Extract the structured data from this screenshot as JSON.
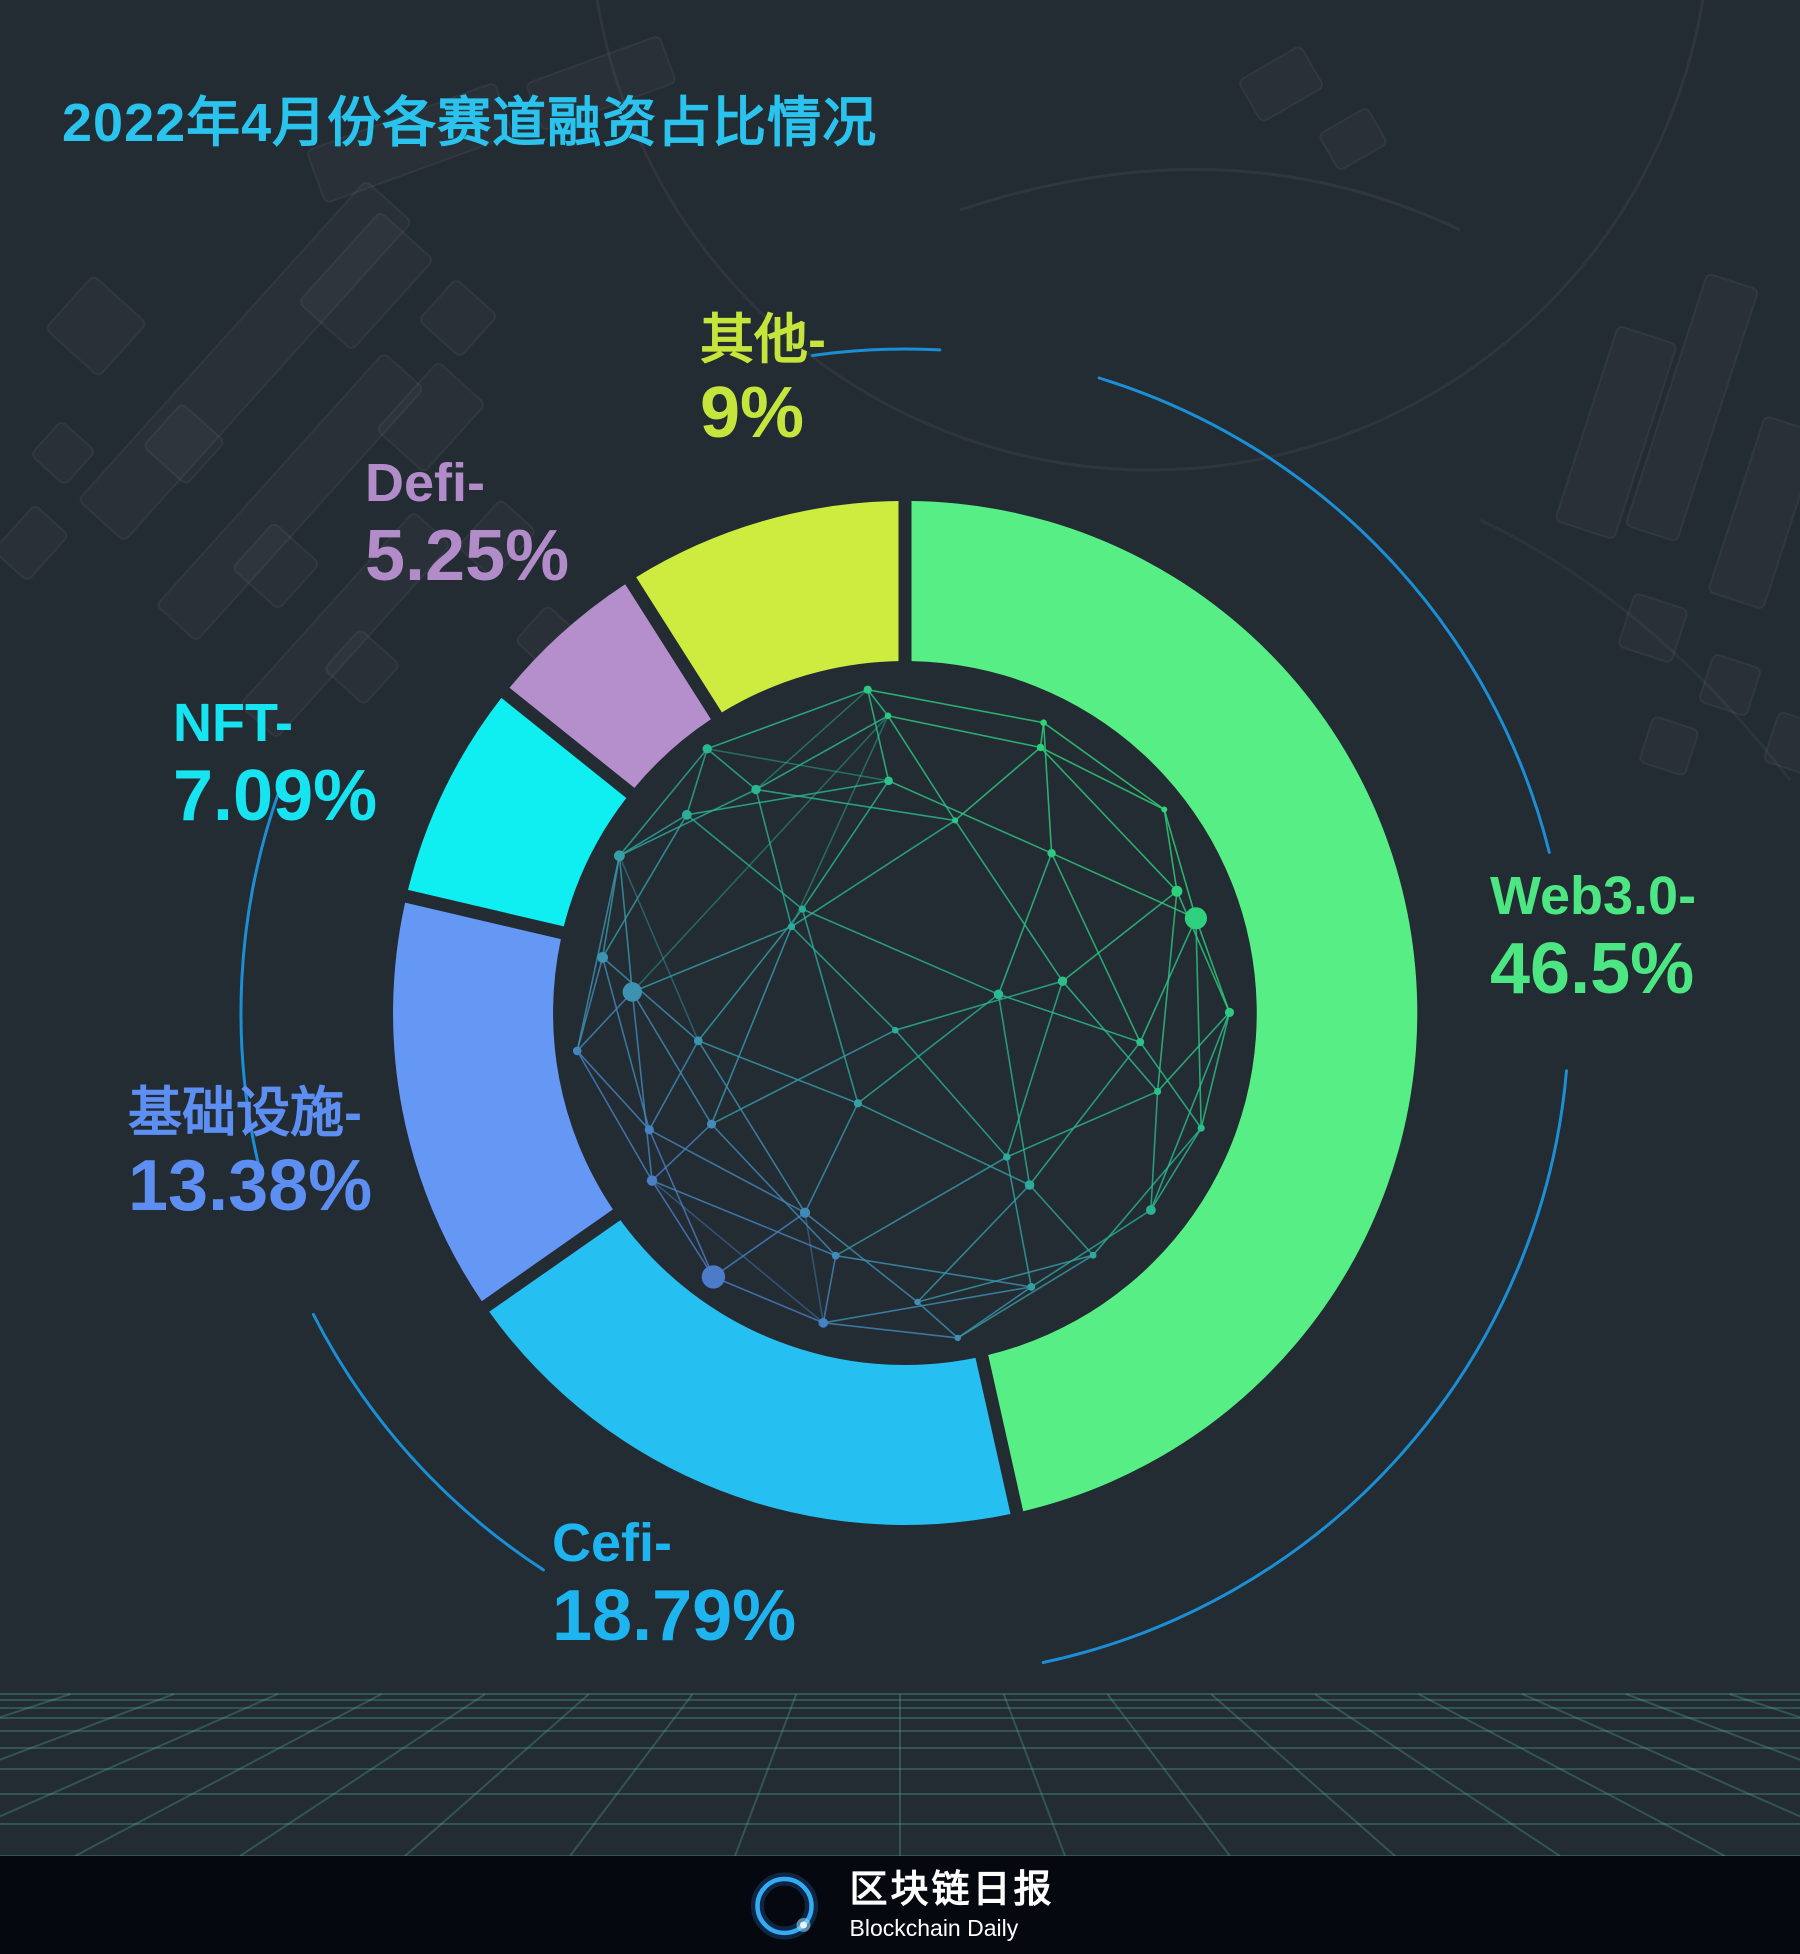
{
  "title": "2022年4月份各赛道融资占比情况",
  "colors": {
    "title": "#29c3ee",
    "background": "#232b33",
    "footer_bar": "#05080f",
    "grid_line": "rgba(86,170,155,0.32)",
    "decor_arc": "#1b8fd6",
    "mesh_blue": "#5b63e0",
    "mesh_teal": "#2aaf96",
    "mesh_green": "#31e86b",
    "logo_ring": "#35aaf5"
  },
  "chart_data": {
    "type": "pie",
    "donut": true,
    "title": "2022年4月份各赛道融资占比情况",
    "start_angle_deg": 0,
    "direction": "clockwise",
    "legend_position": "around",
    "segments": [
      {
        "name": "Web3.0",
        "label": "Web3.0-",
        "value": 46.5,
        "value_label": "46.5%",
        "color": "#57ef85",
        "label_color": "#4ce783"
      },
      {
        "name": "Cefi",
        "label": "Cefi-",
        "value": 18.79,
        "value_label": "18.79%",
        "color": "#26bff2",
        "label_color": "#1db4ef"
      },
      {
        "name": "基础设施",
        "label": "基础设施-",
        "value": 13.38,
        "value_label": "13.38%",
        "color": "#6598f5",
        "label_color": "#5d8ff2"
      },
      {
        "name": "NFT",
        "label": "NFT-",
        "value": 7.09,
        "value_label": "7.09%",
        "color": "#0feef0",
        "label_color": "#16e4f0"
      },
      {
        "name": "Defi",
        "label": "Defi-",
        "value": 5.25,
        "value_label": "5.25%",
        "color": "#b48fcb",
        "label_color": "#b18cc9"
      },
      {
        "name": "其他",
        "label": "其他-",
        "value": 9.0,
        "value_label": "9%",
        "color": "#cdec3f",
        "label_color": "#c6e53c"
      }
    ]
  },
  "footer": {
    "brand_cn": "区块链日报",
    "brand_en": "Blockchain Daily"
  }
}
